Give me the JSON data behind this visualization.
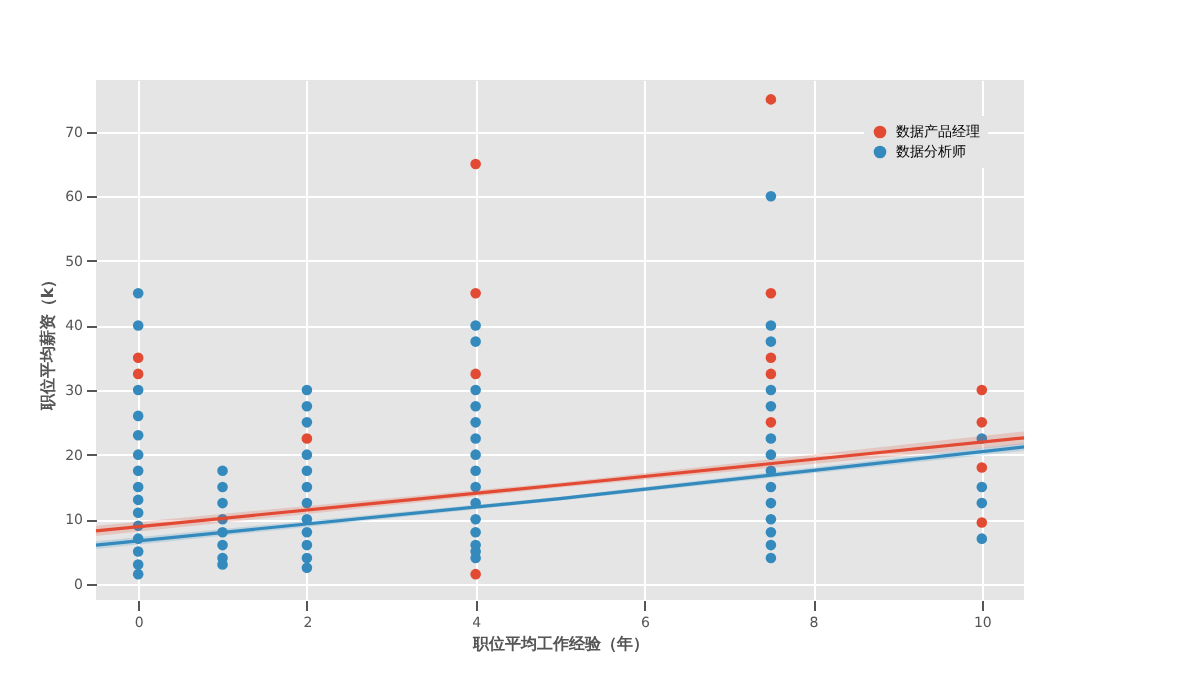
{
  "chart_data": {
    "type": "scatter",
    "xlabel": "职位平均工作经验（年）",
    "ylabel": "职位平均薪资（k）",
    "xlim": [
      -0.5,
      10.5
    ],
    "ylim": [
      -2.5,
      78
    ],
    "xticks": [
      0,
      2,
      4,
      6,
      8,
      10
    ],
    "yticks": [
      0,
      10,
      20,
      30,
      40,
      50,
      60,
      70
    ],
    "grid": true,
    "legend": "top right",
    "marker": "circle",
    "series": [
      {
        "name": "数据产品经理",
        "color": "#e24a33",
        "x": [
          0,
          0,
          2,
          4,
          4,
          4,
          4,
          7.5,
          7.5,
          7.5,
          7.5,
          7.5,
          10,
          10,
          10,
          10
        ],
        "values": [
          35,
          32.5,
          22.5,
          65,
          45,
          32.5,
          1.5,
          75,
          45,
          35,
          32.5,
          25,
          30,
          25,
          18,
          9.5
        ]
      },
      {
        "name": "数据分析师",
        "color": "#348abd",
        "x": [
          0,
          0,
          0,
          0,
          0,
          0,
          0,
          0,
          0,
          0,
          0,
          0,
          0,
          0,
          0,
          1,
          1,
          1,
          1,
          1,
          1,
          1,
          1,
          2,
          2,
          2,
          2,
          2,
          2,
          2,
          2,
          2,
          2,
          2,
          2,
          4,
          4,
          4,
          4,
          4,
          4,
          4,
          4,
          4,
          4,
          4,
          4,
          4,
          4,
          4,
          7.5,
          7.5,
          7.5,
          7.5,
          7.5,
          7.5,
          7.5,
          7.5,
          7.5,
          7.5,
          7.5,
          7.5,
          7.5,
          7.5,
          10,
          10,
          10,
          10
        ],
        "values": [
          45,
          40,
          30,
          26,
          23,
          20,
          17.5,
          15,
          13,
          11,
          9,
          7,
          5,
          3,
          1.5,
          17.5,
          15,
          12.5,
          10,
          8,
          6,
          4,
          3,
          30,
          27.5,
          25,
          20,
          17.5,
          15,
          12.5,
          10,
          8,
          6,
          4,
          2.5,
          40,
          37.5,
          30,
          27.5,
          25,
          22.5,
          20,
          17.5,
          15,
          12.5,
          10,
          8,
          6,
          4,
          5,
          60,
          40,
          37.5,
          30,
          27.5,
          22.5,
          20,
          17.5,
          15,
          12.5,
          10,
          8,
          6,
          4,
          22.5,
          15,
          12.5,
          7
        ]
      },
      {
        "color": "#e24a33",
        "type": "line",
        "marker": "none",
        "x": [
          -0.5,
          5,
          10.5
        ],
        "values": [
          8.2,
          15.3,
          22.6
        ],
        "lower": [
          7.4,
          14.9,
          21.6
        ],
        "upper": [
          9,
          15.7,
          23.6
        ]
      },
      {
        "color": "#348abd",
        "type": "line",
        "marker": "none",
        "x": [
          -0.5,
          5,
          10.5
        ],
        "values": [
          6,
          13.2,
          21.2
        ],
        "lower": [
          5.4,
          12.9,
          20.6
        ],
        "upper": [
          6.6,
          13.5,
          21.8
        ]
      }
    ]
  }
}
